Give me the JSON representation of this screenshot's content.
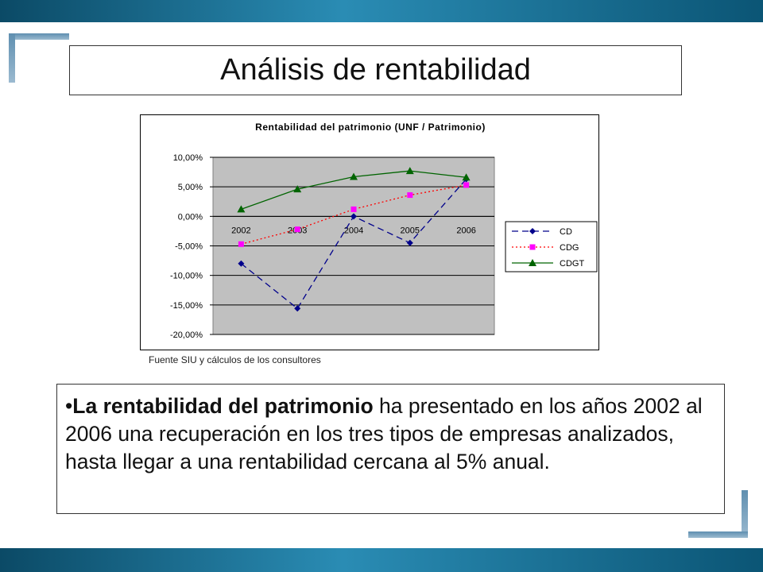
{
  "slide": {
    "title": "Análisis de rentabilidad",
    "source_note": "Fuente SIU y cálculos de los consultores",
    "bullet": {
      "marker": "•",
      "bold": "La rentabilidad del patrimonio",
      "rest": " ha presentado en los años 2002 al 2006 una recuperación en los tres tipos de empresas analizados, hasta llegar a una rentabilidad cercana al 5% anual."
    }
  },
  "colors": {
    "accent_bar": "#1f7aa3",
    "plot_background": "#c0c0c0",
    "CD": "#00008b",
    "CDG": "#ff00ff",
    "CDG_line": "#ff0000",
    "CDGT": "#006400"
  },
  "chart_data": {
    "type": "line",
    "title": "Rentabilidad del patrimonio (UNF / Patrimonio)",
    "categories": [
      "2002",
      "2003",
      "2004",
      "2005",
      "2006"
    ],
    "ylim": [
      -20,
      10
    ],
    "yticks": [
      "10,00%",
      "5,00%",
      "0,00%",
      "-5,00%",
      "-10,00%",
      "-15,00%",
      "-20,00%"
    ],
    "ytick_values": [
      10,
      5,
      0,
      -5,
      -10,
      -15,
      -20
    ],
    "grid": true,
    "legend_position": "right",
    "series": [
      {
        "name": "CD",
        "values": [
          -8.0,
          -15.6,
          0.0,
          -4.5,
          6.3
        ],
        "marker": "diamond",
        "line_style": "dashed"
      },
      {
        "name": "CDG",
        "values": [
          -4.7,
          -2.2,
          1.2,
          3.6,
          5.3
        ],
        "marker": "square",
        "line_style": "dotted"
      },
      {
        "name": "CDGT",
        "values": [
          1.2,
          4.6,
          6.7,
          7.7,
          6.6
        ],
        "marker": "triangle",
        "line_style": "solid"
      }
    ]
  }
}
